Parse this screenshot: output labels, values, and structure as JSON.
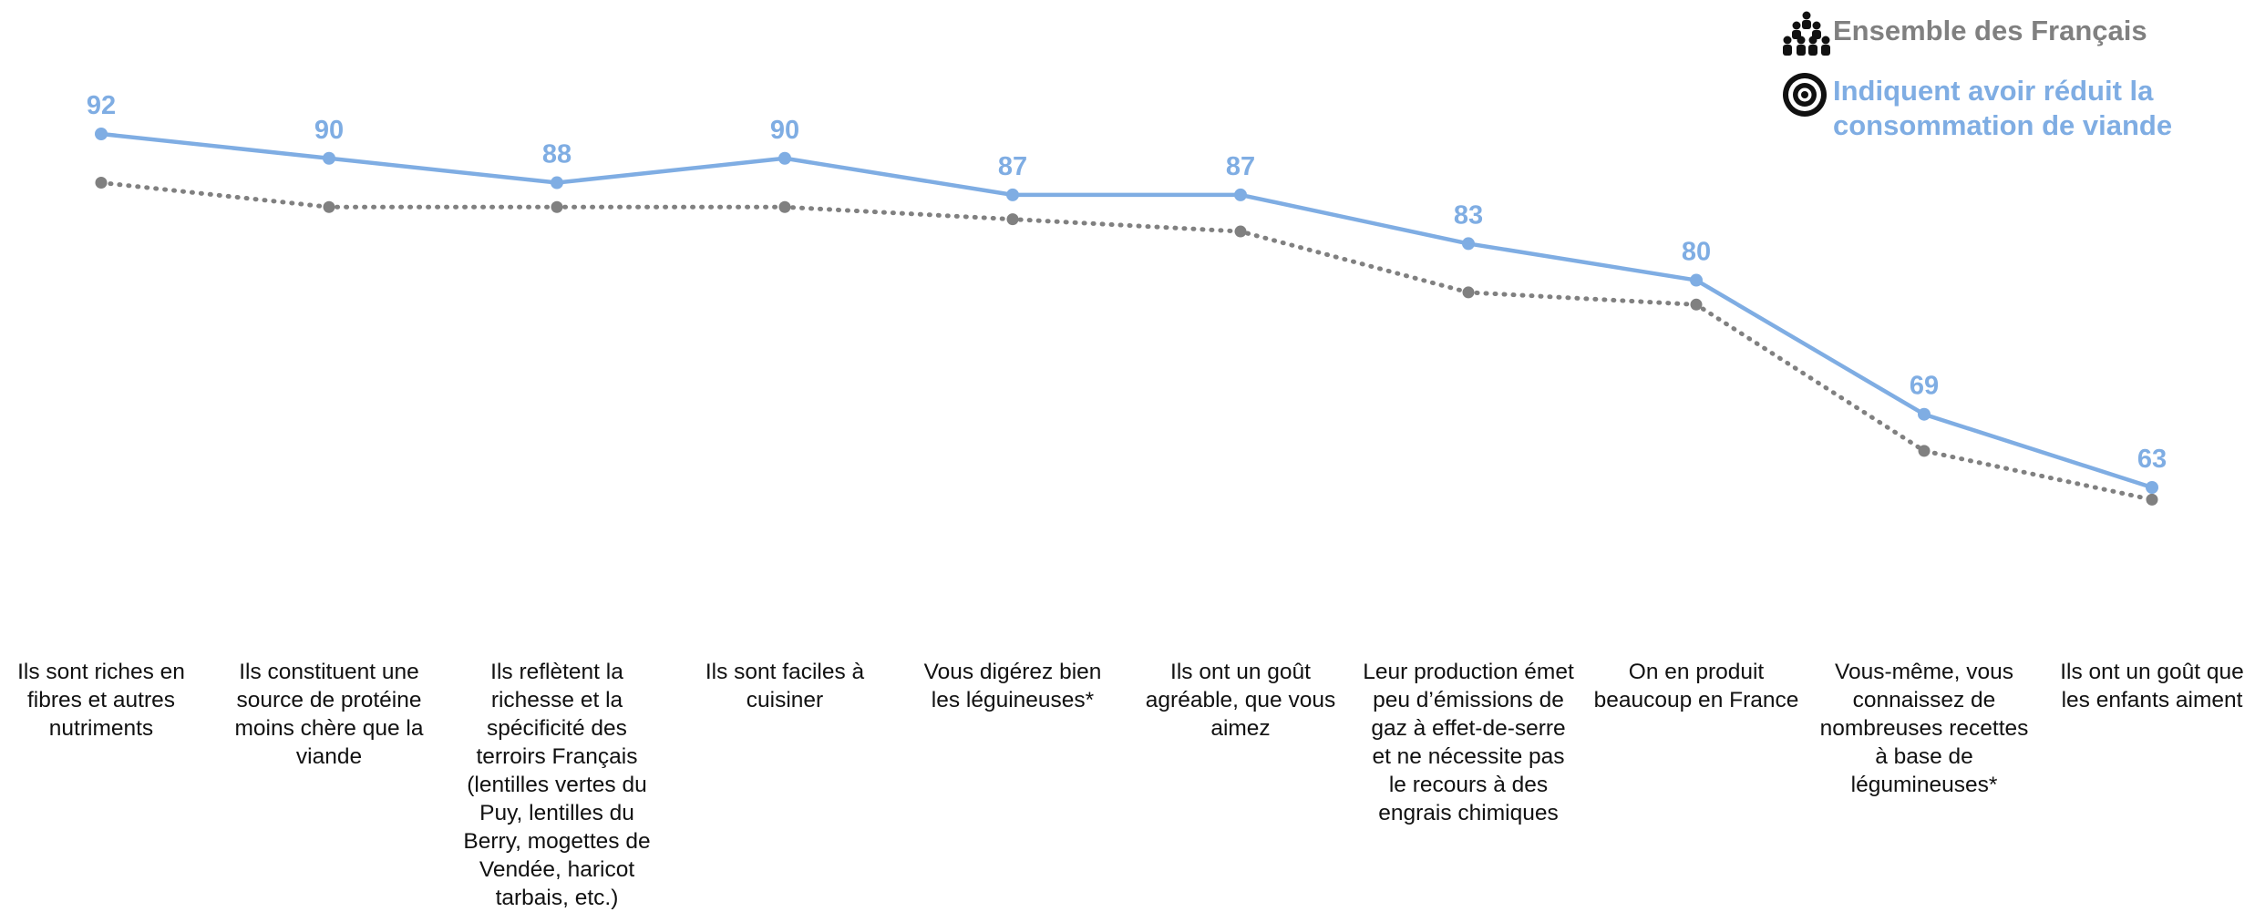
{
  "chart_data": {
    "type": "line",
    "categories": [
      "Ils sont riches en fibres et autres nutriments",
      "Ils constituent une source de protéine moins chère que la viande",
      "Ils reflètent la richesse et la spécificité des terroirs Français (lentilles vertes du Puy, lentilles du Berry, mogettes de Vendée, haricot tarbais, etc.)",
      "Ils sont faciles à cuisiner",
      "Vous digérez bien les léguineuses*",
      "Ils ont un goût agréable, que vous aimez",
      "Leur production émet peu d’émissions de gaz à effet-de-serre et ne nécessite pas le recours à des engrais chimiques",
      "On en produit beaucoup en France",
      "Vous-même, vous connaissez de nombreuses recettes à base de légumineuses*",
      "Ils ont un goût que les enfants aiment"
    ],
    "series": [
      {
        "name": "Indiquent avoir réduit la consommation de viande",
        "values": [
          92,
          90,
          88,
          90,
          87,
          87,
          83,
          80,
          69,
          63
        ],
        "labels": [
          "92",
          "90",
          "88",
          "90",
          "87",
          "87",
          "83",
          "80",
          "69",
          "63"
        ],
        "color": "#7FADE3",
        "style": "solid"
      },
      {
        "name": "Ensemble des Français",
        "values": [
          88,
          86,
          86,
          86,
          85,
          84,
          79,
          78,
          66,
          62
        ],
        "color": "#808080",
        "style": "dotted"
      }
    ],
    "ylim": [
      50,
      100
    ],
    "grid": false,
    "legend_position": "top-right",
    "legend": [
      {
        "label": "Ensemble des Français",
        "color": "#808080",
        "icon": "people-group-icon"
      },
      {
        "label": "Indiquent avoir réduit la consommation de viande",
        "color": "#7FADE3",
        "icon": "target-icon"
      }
    ]
  }
}
